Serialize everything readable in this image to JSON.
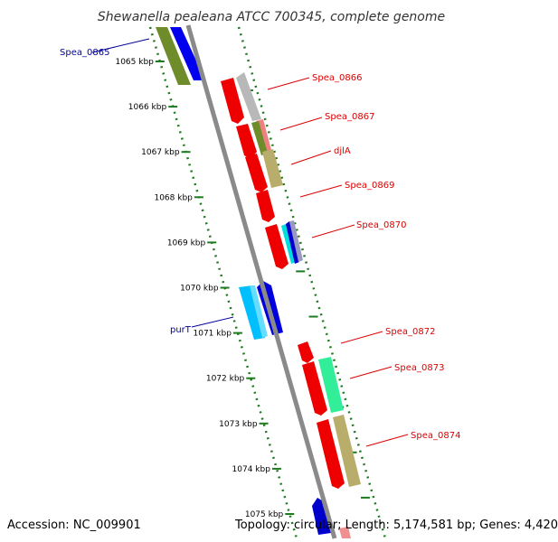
{
  "title": "Shewanella pealeana ATCC 700345, complete genome",
  "accession_label": "Accession: NC_009901",
  "topology_label": "Topology: circular; Length: 5,174,581 bp; Genes: 4,420",
  "colors": {
    "backbone": "#8a8a8a",
    "tick": "#1e7a1e",
    "forward_label": "#dd0000",
    "reverse_label": "#000099"
  },
  "scale_labels": [
    "1065 kbp",
    "1066 kbp",
    "1067 kbp",
    "1068 kbp",
    "1069 kbp",
    "1070 kbp",
    "1071 kbp",
    "1072 kbp",
    "1073 kbp",
    "1074 kbp",
    "1075 kbp"
  ],
  "gene_labels": [
    {
      "name": "Spea_0865",
      "strand": "reverse"
    },
    {
      "name": "Spea_0866",
      "strand": "forward"
    },
    {
      "name": "Spea_0867",
      "strand": "forward"
    },
    {
      "name": "djlA",
      "strand": "forward"
    },
    {
      "name": "Spea_0869",
      "strand": "forward"
    },
    {
      "name": "Spea_0870",
      "strand": "forward"
    },
    {
      "name": "purT",
      "strand": "reverse"
    },
    {
      "name": "Spea_0872",
      "strand": "forward"
    },
    {
      "name": "Spea_0873",
      "strand": "forward"
    },
    {
      "name": "Spea_0874",
      "strand": "forward"
    }
  ]
}
